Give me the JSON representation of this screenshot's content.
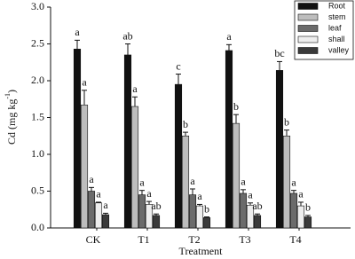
{
  "chart_data": {
    "type": "bar",
    "x_label": "Treatment",
    "y_label": {
      "prefix": "Cd (mg kg",
      "superscript": "-1",
      "suffix": ")"
    },
    "categories": [
      "CK",
      "T1",
      "T2",
      "T3",
      "T4"
    ],
    "ylim": [
      0,
      3
    ],
    "yticks": [
      {
        "value": 0,
        "label": "0.0"
      },
      {
        "value": 0.5,
        "label": "0.5"
      },
      {
        "value": 1,
        "label": "1.0"
      },
      {
        "value": 1.5,
        "label": "1.5"
      },
      {
        "value": 2,
        "label": "2.0"
      },
      {
        "value": 2.5,
        "label": "2.5"
      },
      {
        "value": 3,
        "label": "3.0"
      }
    ],
    "legend": "upper right",
    "series": [
      {
        "name": "Root",
        "color": "#111111",
        "values": [
          2.43,
          2.35,
          1.95,
          2.41,
          2.14
        ],
        "errors": [
          0.12,
          0.15,
          0.14,
          0.08,
          0.12
        ],
        "letters": [
          "a",
          "ab",
          "c",
          "a",
          "bc"
        ]
      },
      {
        "name": "stem",
        "color": "#bdbdbd",
        "values": [
          1.67,
          1.65,
          1.25,
          1.42,
          1.25
        ],
        "errors": [
          0.2,
          0.13,
          0.05,
          0.12,
          0.08
        ],
        "letters": [
          "a",
          "a",
          "b",
          "b",
          "b"
        ]
      },
      {
        "name": "leaf",
        "color": "#6b6b6b",
        "values": [
          0.5,
          0.45,
          0.45,
          0.47,
          0.47
        ],
        "errors": [
          0.05,
          0.06,
          0.08,
          0.05,
          0.04
        ],
        "letters": [
          "a",
          "a",
          "a",
          "a",
          "a"
        ]
      },
      {
        "name": "shall",
        "color": "#eeeeee",
        "values": [
          0.34,
          0.32,
          0.3,
          0.31,
          0.3
        ],
        "errors": [
          0.01,
          0.04,
          0.02,
          0.03,
          0.05
        ],
        "letters": [
          "a",
          "a",
          "a",
          "a",
          "a"
        ]
      },
      {
        "name": "valley",
        "color": "#3a3a3a",
        "values": [
          0.18,
          0.17,
          0.14,
          0.17,
          0.15
        ],
        "errors": [
          0.02,
          0.02,
          0.01,
          0.02,
          0.02
        ],
        "letters": [
          "a",
          "ab",
          "b",
          "ab",
          "b"
        ]
      }
    ]
  }
}
